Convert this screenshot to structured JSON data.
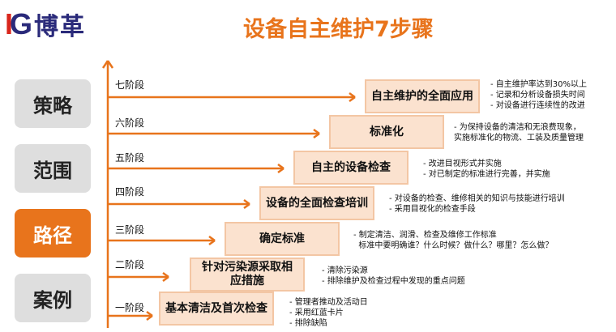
{
  "logo": {
    "mark_left": "I",
    "mark_right": "G",
    "text": "博革"
  },
  "title": "设备自主维护7步骤",
  "colors": {
    "accent": "#e8741c",
    "box_fill": "#fbe2cf",
    "box_border": "#f3c6a4",
    "brand_blue": "#2a2a7a",
    "brand_red": "#d9261c"
  },
  "sidebar": [
    {
      "label": "策略",
      "active": false
    },
    {
      "label": "范围",
      "active": false
    },
    {
      "label": "路径",
      "active": true
    },
    {
      "label": "案例",
      "active": false
    }
  ],
  "steps": [
    {
      "stage": "一阶段",
      "title": "基本清洁及首次检查",
      "notes": [
        "- 管理者推动及活动日",
        "- 采用红蓝卡片",
        "- 排除缺陷"
      ]
    },
    {
      "stage": "二阶段",
      "title": "针对污染源采取相应措施",
      "notes": [
        "- 清除污染源",
        "- 排除维护及检查过程中发现的重点问题"
      ]
    },
    {
      "stage": "三阶段",
      "title": "确定标准",
      "notes": [
        "- 制定清洁、润滑、检查及维修工作标准",
        "  标准中要明确谁？什么时候？做什么？哪里？怎么做？"
      ]
    },
    {
      "stage": "四阶段",
      "title": "设备的全面检查培训",
      "notes": [
        "- 对设备的检查、维修相关的知识与技能进行培训",
        "- 采用目视化的检查手段"
      ]
    },
    {
      "stage": "五阶段",
      "title": "自主的设备检查",
      "notes": [
        "- 改进目视形式并实施",
        "- 对已制定的标准进行完善，并实施"
      ]
    },
    {
      "stage": "六阶段",
      "title": "标准化",
      "notes": [
        "- 为保持设备的清洁和无浪费现象，",
        "实施标准化的物流、工装及质量管理"
      ]
    },
    {
      "stage": "七阶段",
      "title": "自主维护的全面应用",
      "notes": [
        "- 自主维护率达到30%以上",
        "- 记录和分析设备损失时间",
        "- 对设备进行连续性的改进"
      ]
    }
  ]
}
